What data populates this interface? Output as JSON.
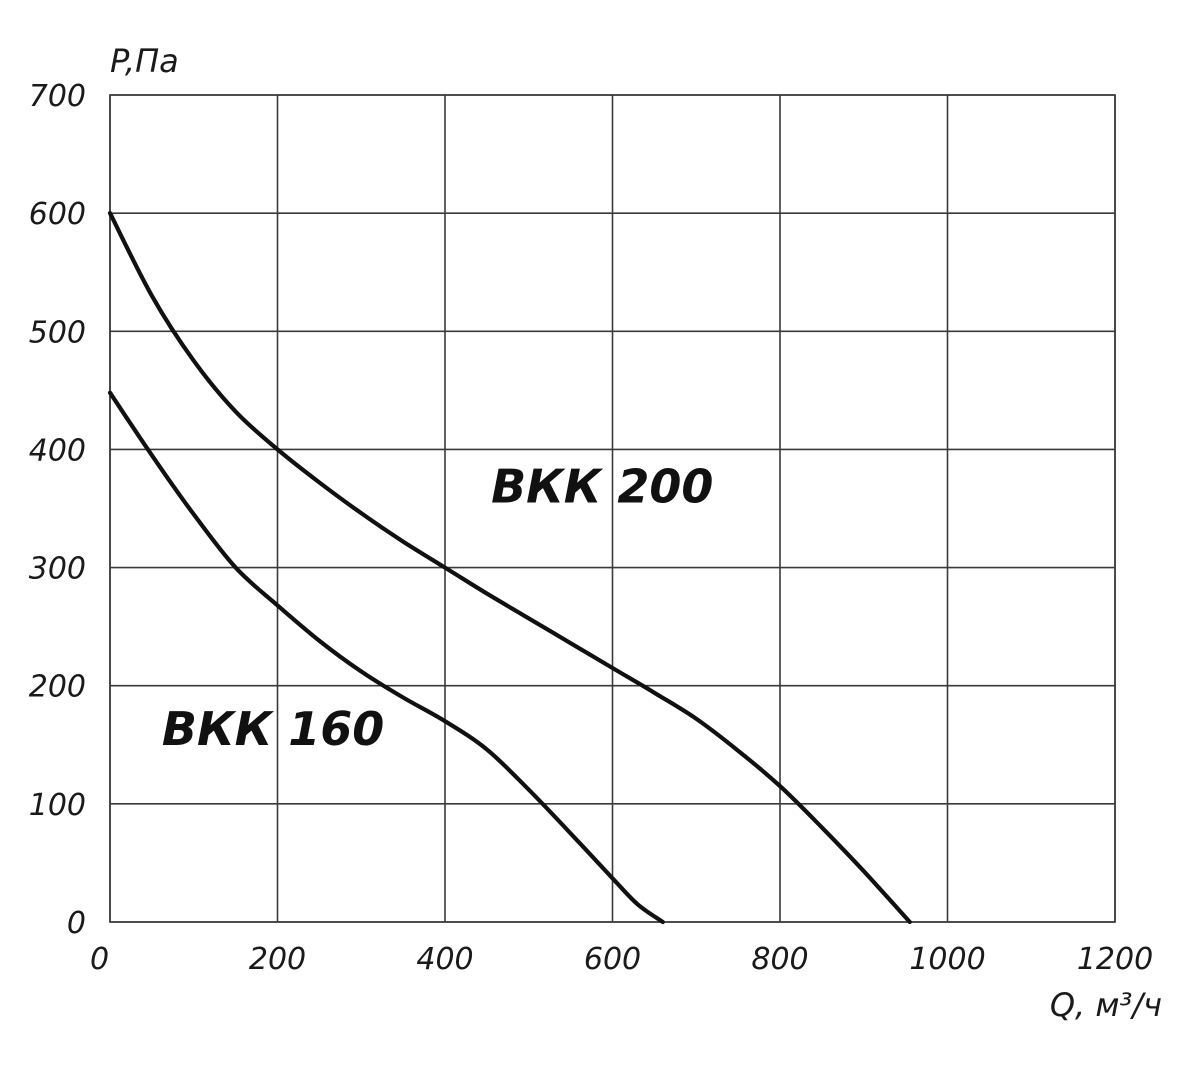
{
  "chart_data": {
    "type": "line",
    "title": "",
    "xlabel": "Q, м³/ч",
    "ylabel": "P,Па",
    "xlim": [
      0,
      1200
    ],
    "ylim": [
      0,
      700
    ],
    "x_ticks": [
      0,
      200,
      400,
      600,
      800,
      1000,
      1200
    ],
    "y_ticks": [
      0,
      100,
      200,
      300,
      400,
      500,
      600,
      700
    ],
    "grid": true,
    "legend": "none",
    "series": [
      {
        "name": "ВКК 160",
        "color": "#111111",
        "x": [
          0,
          50,
          100,
          150,
          200,
          250,
          300,
          350,
          400,
          450,
          500,
          550,
          600,
          630,
          660
        ],
        "y": [
          448,
          395,
          345,
          300,
          268,
          238,
          212,
          190,
          170,
          146,
          112,
          75,
          37,
          15,
          0
        ]
      },
      {
        "name": "ВКК 200",
        "color": "#111111",
        "x": [
          0,
          50,
          100,
          150,
          200,
          250,
          300,
          350,
          400,
          450,
          500,
          550,
          600,
          650,
          700,
          750,
          800,
          850,
          900,
          955
        ],
        "y": [
          600,
          530,
          475,
          432,
          400,
          372,
          346,
          322,
          300,
          278,
          257,
          236,
          215,
          194,
          172,
          145,
          115,
          80,
          43,
          0
        ]
      }
    ],
    "annotations": [
      {
        "text": "ВКК 200",
        "x": 455,
        "y": 355
      },
      {
        "text": "ВКК 160",
        "x": 62,
        "y": 150
      }
    ]
  }
}
